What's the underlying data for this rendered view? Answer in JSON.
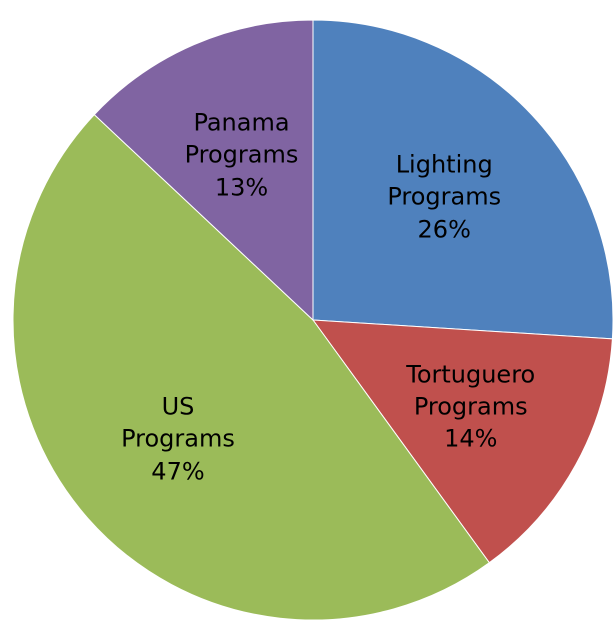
{
  "chart_data": {
    "type": "pie",
    "categories": [
      "Lighting Programs",
      "Tortuguero Programs",
      "US Programs",
      "Panama Programs"
    ],
    "values": [
      26,
      14,
      47,
      13
    ],
    "value_labels": [
      "26%",
      "14%",
      "47%",
      "13%"
    ],
    "colors": [
      "#4f81bd",
      "#c0504d",
      "#9bbb59",
      "#8064a2"
    ]
  }
}
